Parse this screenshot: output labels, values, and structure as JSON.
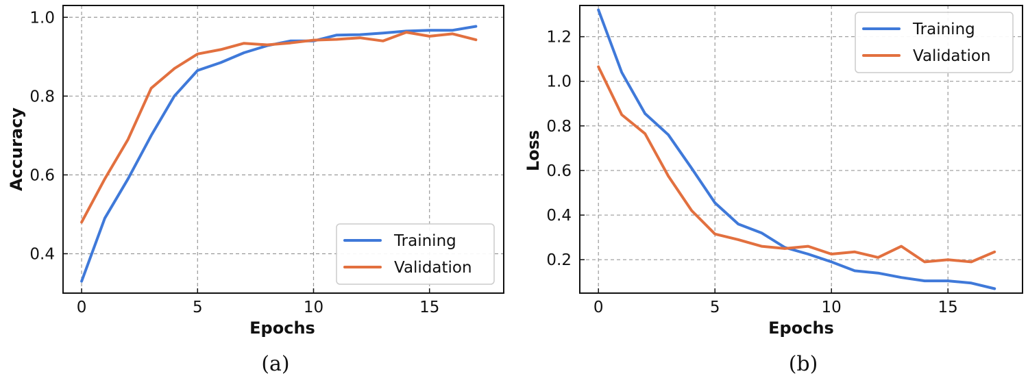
{
  "colors": {
    "training": "#3f79d9",
    "validation": "#e2703f",
    "grid": "#999999",
    "axis": "#111111"
  },
  "chart_data": [
    {
      "type": "line",
      "panel_label": "(a)",
      "xlabel": "Epochs",
      "ylabel": "Accuracy",
      "xlim": [
        -0.8,
        18.2
      ],
      "ylim": [
        0.3,
        1.03
      ],
      "xticks": [
        0,
        5,
        10,
        15
      ],
      "yticks": [
        0.4,
        0.6,
        0.8,
        1.0
      ],
      "xtick_labels": [
        "0",
        "5",
        "10",
        "15"
      ],
      "ytick_labels": [
        "0.4",
        "0.6",
        "0.8",
        "1.0"
      ],
      "grid": true,
      "legend_position": "lower-right",
      "x": [
        0,
        1,
        2,
        3,
        4,
        5,
        6,
        7,
        8,
        9,
        10,
        11,
        12,
        13,
        14,
        15,
        16,
        17
      ],
      "series": [
        {
          "name": "Training",
          "color_key": "training",
          "values": [
            0.33,
            0.49,
            0.59,
            0.7,
            0.8,
            0.865,
            0.885,
            0.91,
            0.928,
            0.94,
            0.94,
            0.955,
            0.956,
            0.96,
            0.965,
            0.967,
            0.967,
            0.977
          ]
        },
        {
          "name": "Validation",
          "color_key": "validation",
          "values": [
            0.48,
            0.59,
            0.69,
            0.82,
            0.87,
            0.907,
            0.918,
            0.934,
            0.93,
            0.935,
            0.942,
            0.944,
            0.948,
            0.94,
            0.962,
            0.952,
            0.958,
            0.943
          ]
        }
      ]
    },
    {
      "type": "line",
      "panel_label": "(b)",
      "xlabel": "Epochs",
      "ylabel": "Loss",
      "xlim": [
        -0.8,
        18.2
      ],
      "ylim": [
        0.05,
        1.34
      ],
      "xticks": [
        0,
        5,
        10,
        15
      ],
      "yticks": [
        0.2,
        0.4,
        0.6,
        0.8,
        1.0,
        1.2
      ],
      "xtick_labels": [
        "0",
        "5",
        "10",
        "15"
      ],
      "ytick_labels": [
        "0.2",
        "0.4",
        "0.6",
        "0.8",
        "1.0",
        "1.2"
      ],
      "grid": true,
      "legend_position": "upper-right",
      "x": [
        0,
        1,
        2,
        3,
        4,
        5,
        6,
        7,
        8,
        9,
        10,
        11,
        12,
        13,
        14,
        15,
        16,
        17
      ],
      "series": [
        {
          "name": "Training",
          "color_key": "training",
          "values": [
            1.32,
            1.04,
            0.855,
            0.76,
            0.61,
            0.455,
            0.36,
            0.32,
            0.255,
            0.225,
            0.19,
            0.15,
            0.14,
            0.12,
            0.105,
            0.105,
            0.095,
            0.07
          ]
        },
        {
          "name": "Validation",
          "color_key": "validation",
          "values": [
            1.065,
            0.85,
            0.765,
            0.575,
            0.42,
            0.315,
            0.29,
            0.26,
            0.25,
            0.26,
            0.225,
            0.235,
            0.21,
            0.26,
            0.19,
            0.2,
            0.19,
            0.235
          ]
        }
      ]
    }
  ]
}
